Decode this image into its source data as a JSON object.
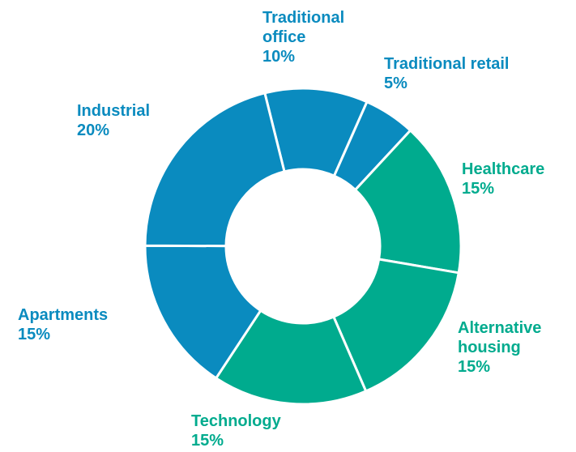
{
  "chart_data": {
    "type": "donut",
    "categories": [
      "Traditional office",
      "Traditional retail",
      "Healthcare",
      "Alternative housing",
      "Technology",
      "Apartments",
      "Industrial"
    ],
    "values": [
      10,
      5,
      15,
      15,
      15,
      15,
      20
    ],
    "value_labels": [
      "10%",
      "5%",
      "15%",
      "15%",
      "15%",
      "15%",
      "20%"
    ],
    "colors": [
      "#0a8bbf",
      "#0a8bbf",
      "#00ab8e",
      "#00ab8e",
      "#00ab8e",
      "#0a8bbf",
      "#0a8bbf"
    ]
  }
}
